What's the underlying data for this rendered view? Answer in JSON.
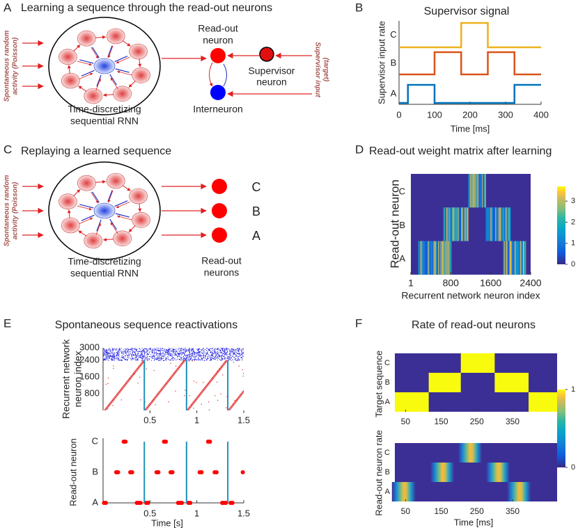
{
  "panel_a": {
    "letter": "A",
    "title": "Learning a sequence through the read-out neurons",
    "input_label": [
      "Spontaneous random",
      "activity (Poisson)"
    ],
    "rnn_label": [
      "Time-discretizing",
      "sequential RNN"
    ],
    "readout_label": [
      "Read-out",
      "neuron"
    ],
    "supervisor_label": [
      "Supervisor",
      "neuron"
    ],
    "interneuron_label": "Interneuron",
    "supervisor_input_label": [
      "Supervisor input",
      "(target)"
    ]
  },
  "panel_b": {
    "letter": "B",
    "title": "Supervisor signal",
    "xlabel": "Time [ms]",
    "ylabel": "Supervisor input rate",
    "xlim": [
      0,
      400
    ],
    "xticks": [
      0,
      100,
      200,
      300,
      400
    ],
    "series": [
      {
        "name": "C",
        "color": "#EDB120",
        "x": [
          0,
          175,
          175,
          250,
          250,
          400
        ],
        "values": [
          0,
          0,
          1,
          1,
          0,
          0
        ]
      },
      {
        "name": "B",
        "color": "#D95319",
        "x": [
          0,
          100,
          100,
          175,
          175,
          250,
          250,
          325,
          325,
          400
        ],
        "values": [
          0,
          0,
          1,
          1,
          0,
          0,
          1,
          1,
          0,
          0
        ]
      },
      {
        "name": "A",
        "color": "#0072BD",
        "x": [
          0,
          25,
          25,
          100,
          100,
          325,
          325,
          400
        ],
        "values": [
          0,
          0,
          1,
          1,
          0,
          0,
          1,
          1
        ]
      }
    ]
  },
  "panel_c": {
    "letter": "C",
    "title": "Replaying a learned sequence",
    "input_label": [
      "Spontaneous random",
      "activity (Poisson)"
    ],
    "rnn_label": [
      "Time-discretizing",
      "sequential RNN"
    ],
    "neuron_labels": [
      "C",
      "B",
      "A"
    ],
    "readout_label": [
      "Read-out",
      "neurons"
    ]
  },
  "panel_d": {
    "letter": "D",
    "title": "Read-out weight matrix after learning",
    "xlabel": "Recurrent network neuron index",
    "ylabel": "Read-out neuron",
    "rows": [
      "C",
      "B",
      "A"
    ],
    "xlim": [
      1,
      2400
    ],
    "xticks": [
      1,
      800,
      1600,
      2400
    ],
    "bands": [
      [
        [
          1150,
          1500
        ]
      ],
      [
        [
          650,
          1150
        ],
        [
          1500,
          2000
        ]
      ],
      [
        [
          150,
          800
        ],
        [
          1850,
          2300
        ]
      ]
    ],
    "clim": [
      0,
      3.7
    ],
    "cticks": [
      0,
      1,
      2,
      3
    ]
  },
  "panel_e": {
    "letter": "E",
    "title": "Spontaneous sequence reactivations",
    "raster": {
      "ylabel": [
        "Recurrent network",
        "neuron index"
      ],
      "ylim": [
        0,
        3000
      ],
      "yticks": [
        800,
        1600,
        2400,
        3000
      ],
      "excitatory_max": 2400
    },
    "readout": {
      "ylabel": "Read-out neuron",
      "rows": [
        "C",
        "B",
        "A"
      ],
      "spikes": [
        [
          0.22,
          0.24,
          0.65,
          0.67,
          1.12,
          1.14
        ],
        [
          0.14,
          0.16,
          0.29,
          0.31,
          0.57,
          0.59,
          0.72,
          0.74,
          1.03,
          1.05,
          1.19,
          1.21,
          1.49
        ],
        [
          0.01,
          0.03,
          0.36,
          0.38,
          0.4,
          0.46,
          0.48,
          0.8,
          0.82,
          0.84,
          0.91,
          0.93,
          1.27,
          1.29,
          1.31,
          1.36,
          1.38
        ]
      ]
    },
    "xlabel": "Time [s]",
    "xlim": [
      0,
      1.5
    ],
    "xticks": [
      0.5,
      1,
      1.5
    ],
    "reactivation_starts": [
      0.02,
      0.45,
      0.9,
      1.34
    ],
    "sequence_duration": 0.42,
    "reactivation_ends": [
      0.44,
      0.89,
      1.33
    ]
  },
  "panel_f": {
    "letter": "F",
    "title": "Rate of read-out neurons",
    "target_ylabel": "Target sequence",
    "rate_ylabel": "Read-out neuron rate",
    "rows": [
      "C",
      "B",
      "A"
    ],
    "xlim": [
      20,
      475
    ],
    "xticks": [
      50,
      150,
      250,
      350
    ],
    "xlabel": "Time [ms]",
    "target_intervals": [
      [
        [
          205,
          300
        ]
      ],
      [
        [
          115,
          205
        ],
        [
          300,
          395
        ]
      ],
      [
        [
          20,
          115
        ],
        [
          395,
          475
        ]
      ]
    ],
    "rate_peaks": [
      [
        231
      ],
      [
        153,
        309
      ],
      [
        45,
        368
      ]
    ],
    "clim": [
      0,
      1
    ],
    "cticks": [
      0,
      1
    ]
  }
}
